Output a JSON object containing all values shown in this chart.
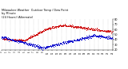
{
  "title": "Milwaukee Weather  Outdoor Temp / Dew Point\nby Minute\n(24 Hours) (Alternate)",
  "bg_color": "#ffffff",
  "temp_color": "#cc0000",
  "dew_color": "#0000cc",
  "ylim": [
    20,
    80
  ],
  "yticks": [
    20,
    30,
    40,
    50,
    60,
    70,
    80
  ],
  "n_points": 1440,
  "grid_color": "#aaaaaa",
  "figsize": [
    1.6,
    0.87
  ],
  "dpi": 100
}
